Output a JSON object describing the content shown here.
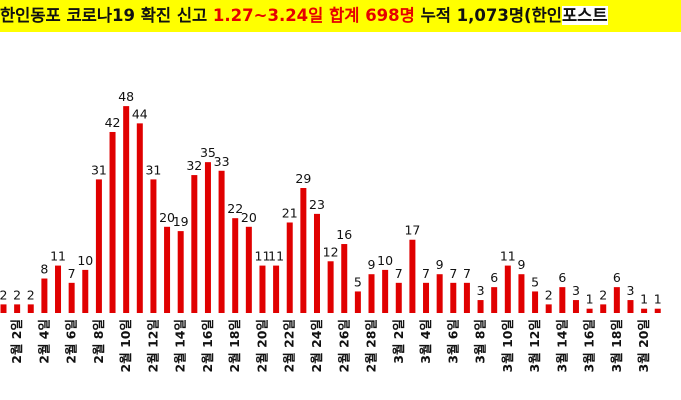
{
  "header": {
    "title_part1": "한인동포 코로나19 확진 신고 ",
    "title_highlight": "1.27~3.24일 합계 698명",
    "title_part2": " 누적 1,073명(한인",
    "title_tail": "포스트"
  },
  "colors": {
    "bar": "#e00000",
    "title_background": "#ffff00",
    "title_highlight": "#e60000"
  },
  "chart_data": {
    "type": "bar",
    "title": "한인동포 코로나19 확진 신고 1.27~3.24일 합계 698명 누적 1,073명(한인포스트",
    "xlabel": "",
    "ylabel": "",
    "ylim": [
      0,
      52
    ],
    "grid": false,
    "legend": "none",
    "categories": [
      "",
      "2월 2일",
      "",
      "2월 4일",
      "",
      "2월 6일",
      "",
      "2월 8일",
      "",
      "2월 10일",
      "",
      "2월 12일",
      "",
      "2월 14일",
      "",
      "2월 16일",
      "",
      "2월 18일",
      "",
      "2월 20일",
      "",
      "2월 22일",
      "",
      "2월 24일",
      "",
      "2월 26일",
      "",
      "2월 28일",
      "",
      "3월 2일",
      "",
      "3월 4일",
      "",
      "3월 6일",
      "",
      "3월 8일",
      "",
      "3월 10일",
      "",
      "3월 12일",
      "",
      "3월 14일",
      "",
      "3월 16일",
      "",
      "3월 18일",
      "",
      "3월 20일",
      ""
    ],
    "values": [
      2,
      2,
      2,
      8,
      11,
      7,
      10,
      31,
      42,
      48,
      44,
      31,
      20,
      19,
      32,
      35,
      33,
      22,
      20,
      11,
      11,
      21,
      29,
      23,
      12,
      16,
      5,
      9,
      10,
      7,
      17,
      7,
      9,
      7,
      7,
      3,
      6,
      11,
      9,
      5,
      2,
      6,
      3,
      1,
      2,
      6,
      3,
      1,
      1
    ]
  }
}
